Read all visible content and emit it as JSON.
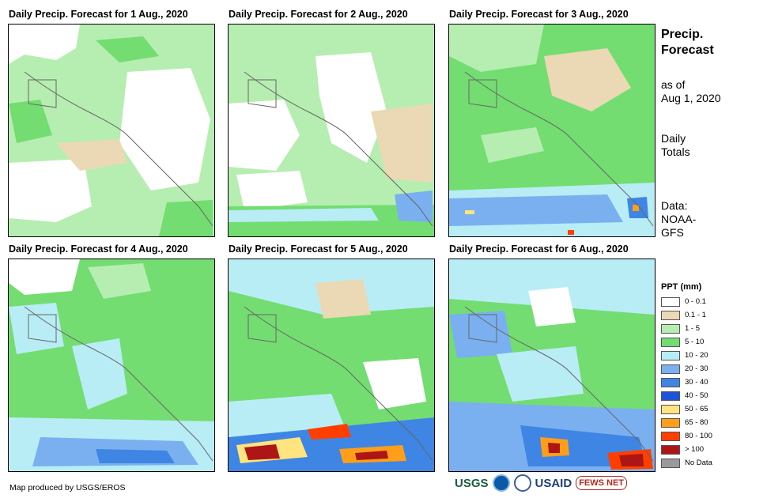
{
  "panels": [
    {
      "title": "Daily Precip. Forecast for 1 Aug., 2020"
    },
    {
      "title": "Daily Precip. Forecast for 2 Aug., 2020"
    },
    {
      "title": "Daily Precip. Forecast for 3 Aug., 2020"
    },
    {
      "title": "Daily Precip. Forecast for 4 Aug., 2020"
    },
    {
      "title": "Daily Precip. Forecast for 5 Aug., 2020"
    },
    {
      "title": "Daily Precip. Forecast for 6 Aug., 2020"
    }
  ],
  "sidebar": {
    "title": "Precip. Forecast",
    "asof_label": "as of",
    "asof_date": "Aug 1, 2020",
    "totals": "Daily Totals",
    "data_label": "Data:",
    "data_source": "NOAA-GFS"
  },
  "legend": {
    "title": "PPT (mm)",
    "items": [
      {
        "label": "0 - 0.1",
        "color": "#ffffff"
      },
      {
        "label": "0.1 - 1",
        "color": "#ead9b4"
      },
      {
        "label": "1 - 5",
        "color": "#b6edb0"
      },
      {
        "label": "5 - 10",
        "color": "#74dd71"
      },
      {
        "label": "10 - 20",
        "color": "#b8edf6"
      },
      {
        "label": "20 - 30",
        "color": "#7ab0f0"
      },
      {
        "label": "30 - 40",
        "color": "#3f86e4"
      },
      {
        "label": "40 - 50",
        "color": "#1c53d8"
      },
      {
        "label": "50 - 65",
        "color": "#ffe480"
      },
      {
        "label": "65 - 80",
        "color": "#ff9e1a"
      },
      {
        "label": "80 - 100",
        "color": "#ff3f00"
      },
      {
        "label": "> 100",
        "color": "#ae1515"
      },
      {
        "label": "No Data",
        "color": "#9a9a9a"
      }
    ]
  },
  "credit": "Map produced by USGS/EROS",
  "logos": {
    "usgs": "USGS",
    "usaid": "USAID",
    "fews": "FEWS NET"
  }
}
